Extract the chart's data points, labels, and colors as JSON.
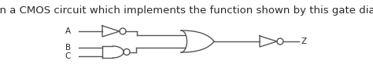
{
  "title": "Design a CMOS circuit which implements the function shown by this gate diagram",
  "title_fontsize": 9.5,
  "bg_color": "#ffffff",
  "text_color": "#2a2a2a",
  "label_A": "A",
  "label_B": "B",
  "label_C": "C",
  "label_Z": "Z",
  "line_color": "#555555",
  "lw": 1.0
}
